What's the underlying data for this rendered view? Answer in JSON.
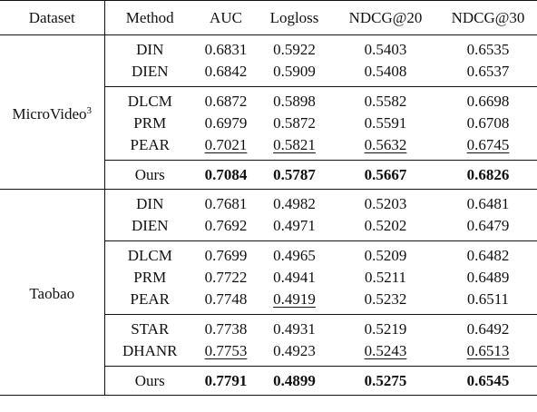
{
  "header": {
    "dataset": "Dataset",
    "method": "Method",
    "auc": "AUC",
    "logloss": "Logloss",
    "ndcg20": "NDCG@20",
    "ndcg30": "NDCG@30"
  },
  "groups": [
    {
      "dataset": "MicroVideo",
      "dataset_sup": "3",
      "rows": [
        {
          "method": "DIN",
          "auc": "0.6831",
          "logloss": "0.5922",
          "ndcg20": "0.5403",
          "ndcg30": "0.6535"
        },
        {
          "method": "DIEN",
          "auc": "0.6842",
          "logloss": "0.5909",
          "ndcg20": "0.5408",
          "ndcg30": "0.6537"
        },
        {
          "method": "DLCM",
          "auc": "0.6872",
          "logloss": "0.5898",
          "ndcg20": "0.5582",
          "ndcg30": "0.6698"
        },
        {
          "method": "PRM",
          "auc": "0.6979",
          "logloss": "0.5872",
          "ndcg20": "0.5591",
          "ndcg30": "0.6708"
        },
        {
          "method": "PEAR",
          "auc": "0.7021",
          "logloss": "0.5821",
          "ndcg20": "0.5632",
          "ndcg30": "0.6745"
        },
        {
          "method": "Ours",
          "auc": "0.7084",
          "logloss": "0.5787",
          "ndcg20": "0.5667",
          "ndcg30": "0.6826"
        }
      ]
    },
    {
      "dataset": "Taobao",
      "rows": [
        {
          "method": "DIN",
          "auc": "0.7681",
          "logloss": "0.4982",
          "ndcg20": "0.5203",
          "ndcg30": "0.6481"
        },
        {
          "method": "DIEN",
          "auc": "0.7692",
          "logloss": "0.4971",
          "ndcg20": "0.5202",
          "ndcg30": "0.6479"
        },
        {
          "method": "DLCM",
          "auc": "0.7699",
          "logloss": "0.4965",
          "ndcg20": "0.5209",
          "ndcg30": "0.6482"
        },
        {
          "method": "PRM",
          "auc": "0.7722",
          "logloss": "0.4941",
          "ndcg20": "0.5211",
          "ndcg30": "0.6489"
        },
        {
          "method": "PEAR",
          "auc": "0.7748",
          "logloss": "0.4919",
          "ndcg20": "0.5232",
          "ndcg30": "0.6511"
        },
        {
          "method": "STAR",
          "auc": "0.7738",
          "logloss": "0.4931",
          "ndcg20": "0.5219",
          "ndcg30": "0.6492"
        },
        {
          "method": "DHANR",
          "auc": "0.7753",
          "logloss": "0.4923",
          "ndcg20": "0.5243",
          "ndcg30": "0.6513"
        },
        {
          "method": "Ours",
          "auc": "0.7791",
          "logloss": "0.4899",
          "ndcg20": "0.5275",
          "ndcg30": "0.6545"
        }
      ]
    }
  ]
}
